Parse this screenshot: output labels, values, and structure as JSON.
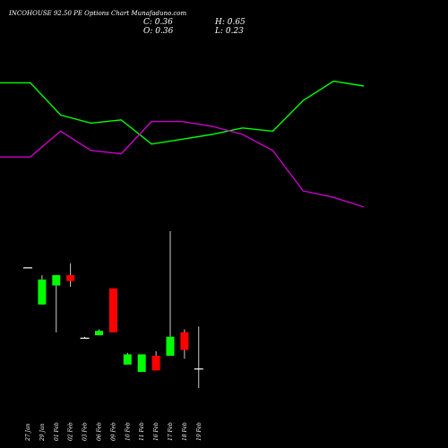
{
  "title": "INCOHOUSE 92.50 PE Options  Chart Munafaduno.com",
  "ohlc": {
    "c": "C: 0.36",
    "h": "H: 0.65",
    "o": "O: 0.36",
    "l": "L: 0.23"
  },
  "colors": {
    "background": "#000000",
    "up": "#00ff00",
    "down": "#ff0000",
    "doji": "#ffffff",
    "line_green": "#00ff00",
    "line_magenta": "#cc00cc",
    "wick": "#ffffff"
  },
  "chart_data": [
    {
      "type": "line",
      "x": [
        "27 Jan",
        "29 Jan",
        "01 Feb",
        "02 Feb",
        "03 Feb",
        "06 Feb",
        "09 Feb",
        "10 Feb",
        "11 Feb",
        "16 Feb",
        "17 Feb",
        "18 Feb",
        "19 Feb"
      ],
      "series": [
        {
          "color": "#00ff00",
          "values": [
            82,
            82,
            62,
            57,
            59,
            44,
            47,
            50,
            54,
            52,
            71,
            83,
            80
          ]
        },
        {
          "color": "#cc00cc",
          "values": [
            36,
            36,
            52,
            40,
            38,
            58,
            58,
            55,
            50,
            40,
            15,
            11,
            5
          ]
        }
      ],
      "ylim": [
        0,
        100
      ]
    },
    {
      "type": "candlestick",
      "x": [
        "27 Jan",
        "29 Jan",
        "01 Feb",
        "02 Feb",
        "03 Feb",
        "06 Feb",
        "09 Feb",
        "10 Feb",
        "11 Feb",
        "16 Feb",
        "17 Feb",
        "18 Feb",
        "19 Feb"
      ],
      "candles": [
        {
          "o": 1.05,
          "h": 1.05,
          "l": 1.05,
          "c": 1.05
        },
        {
          "o": 0.8,
          "h": 1.0,
          "l": 0.8,
          "c": 0.97
        },
        {
          "o": 0.93,
          "h": 1.0,
          "l": 0.61,
          "c": 1.0
        },
        {
          "o": 1.0,
          "h": 1.08,
          "l": 0.92,
          "c": 0.96
        },
        {
          "o": 0.57,
          "h": 0.58,
          "l": 0.57,
          "c": 0.57
        },
        {
          "o": 0.59,
          "h": 0.63,
          "l": 0.59,
          "c": 0.62
        },
        {
          "o": 0.91,
          "h": 0.91,
          "l": 0.61,
          "c": 0.61
        },
        {
          "o": 0.39,
          "h": 0.47,
          "l": 0.39,
          "c": 0.46
        },
        {
          "o": 0.34,
          "h": 0.46,
          "l": 0.34,
          "c": 0.46
        },
        {
          "o": 0.45,
          "h": 0.48,
          "l": 0.35,
          "c": 0.35
        },
        {
          "o": 0.45,
          "h": 1.3,
          "l": 0.45,
          "c": 0.58
        },
        {
          "o": 0.61,
          "h": 0.63,
          "l": 0.43,
          "c": 0.49
        },
        {
          "o": 0.36,
          "h": 0.65,
          "l": 0.23,
          "c": 0.36
        }
      ],
      "ylim": [
        0.2,
        1.3
      ]
    }
  ]
}
